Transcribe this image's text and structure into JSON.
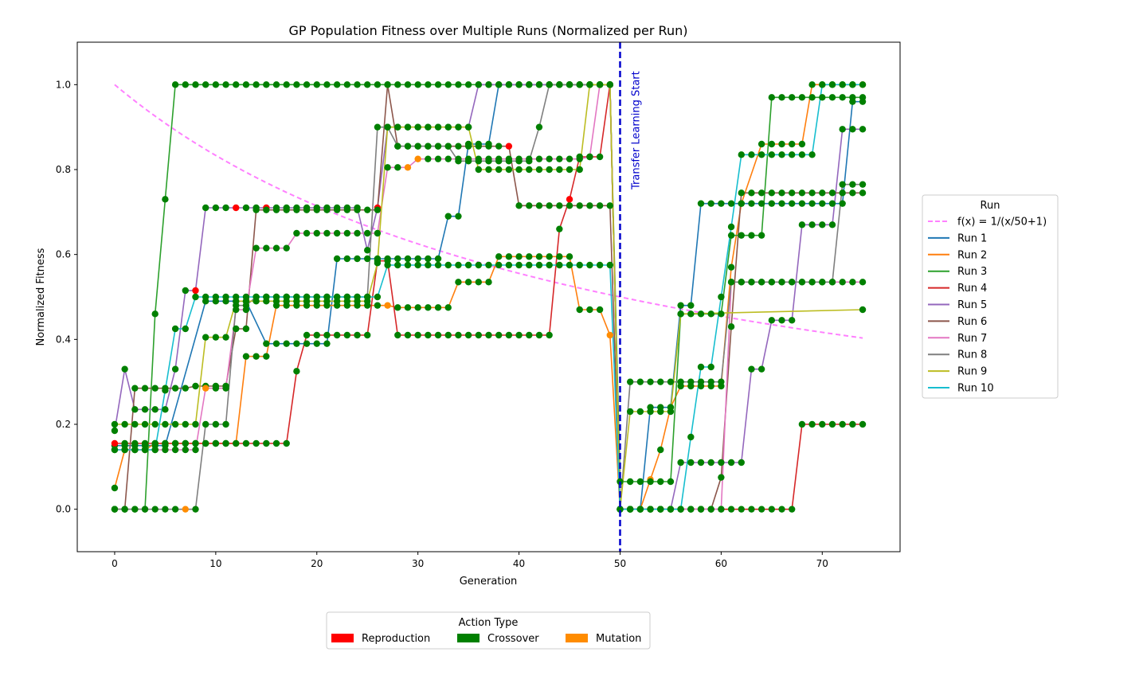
{
  "chart_data": {
    "type": "line",
    "title": "GP Population Fitness over Multiple Runs (Normalized per Run)",
    "xlabel": "Generation",
    "ylabel": "Normalized Fitness",
    "xlim": [
      -3.7,
      77.7
    ],
    "ylim": [
      -0.1,
      1.1
    ],
    "xticks": [
      0,
      10,
      20,
      30,
      40,
      50,
      60,
      70
    ],
    "yticks": [
      0.0,
      0.2,
      0.4,
      0.6,
      0.8,
      1.0
    ],
    "grid": false,
    "vline": {
      "x": 50,
      "label": "Transfer Learning Start",
      "color": "#0000cc"
    },
    "curve": {
      "label": "f(x) = 1/(x/50+1)",
      "color": "#ff80ff",
      "x_start": 0,
      "x_end": 74
    },
    "legend": {
      "title": "Run",
      "placement": "right"
    },
    "action_legend": {
      "title": "Action Type",
      "placement": "bottom",
      "items": [
        {
          "label": "Reproduction",
          "color": "#ff0000"
        },
        {
          "label": "Crossover",
          "color": "#008000"
        },
        {
          "label": "Mutation",
          "color": "#ff8c00"
        }
      ]
    },
    "series": [
      {
        "name": "Run 1",
        "color": "#1f77b4",
        "points": [
          [
            0,
            0.15,
            "C"
          ],
          [
            5,
            0.15,
            "C"
          ],
          [
            9,
            0.49,
            "C"
          ],
          [
            13,
            0.49,
            "C"
          ],
          [
            15,
            0.39,
            "C"
          ],
          [
            21,
            0.39,
            "C"
          ],
          [
            22,
            0.59,
            "C"
          ],
          [
            32,
            0.59,
            "C"
          ],
          [
            33,
            0.69,
            "C"
          ],
          [
            34,
            0.69,
            "C"
          ],
          [
            35,
            0.86,
            "C"
          ],
          [
            37,
            0.86,
            "C"
          ],
          [
            38,
            1.0,
            "C"
          ],
          [
            49,
            1.0,
            "R"
          ],
          [
            50,
            0.0,
            "C"
          ],
          [
            52,
            0.0,
            "C"
          ],
          [
            53,
            0.24,
            "C"
          ],
          [
            55,
            0.24,
            "C"
          ],
          [
            56,
            0.48,
            "C"
          ],
          [
            57,
            0.48,
            "C"
          ],
          [
            58,
            0.72,
            "C"
          ],
          [
            72,
            0.72,
            "C"
          ],
          [
            73,
            0.96,
            "C"
          ],
          [
            74,
            0.96,
            "C"
          ]
        ]
      },
      {
        "name": "Run 2",
        "color": "#ff7f0e",
        "points": [
          [
            0,
            0.05,
            "C"
          ],
          [
            1,
            0.14,
            "M"
          ],
          [
            3,
            0.14,
            "M"
          ],
          [
            4,
            0.155,
            "C"
          ],
          [
            12,
            0.155,
            "M"
          ],
          [
            13,
            0.36,
            "C"
          ],
          [
            15,
            0.36,
            "C"
          ],
          [
            16,
            0.48,
            "C"
          ],
          [
            27,
            0.48,
            "M"
          ],
          [
            28,
            0.475,
            "C"
          ],
          [
            33,
            0.475,
            "C"
          ],
          [
            34,
            0.535,
            "C"
          ],
          [
            37,
            0.535,
            "C"
          ],
          [
            38,
            0.595,
            "C"
          ],
          [
            45,
            0.595,
            "C"
          ],
          [
            46,
            0.47,
            "C"
          ],
          [
            48,
            0.47,
            "C"
          ],
          [
            49,
            0.41,
            "M"
          ],
          [
            50,
            0.0,
            "C"
          ],
          [
            52,
            0.0,
            "C"
          ],
          [
            53,
            0.07,
            "M"
          ],
          [
            54,
            0.14,
            "C"
          ],
          [
            55,
            0.24,
            "C"
          ],
          [
            56,
            0.29,
            "C"
          ],
          [
            60,
            0.29,
            "C"
          ],
          [
            61,
            0.57,
            "C"
          ],
          [
            62,
            0.72,
            "C"
          ],
          [
            64,
            0.86,
            "C"
          ],
          [
            68,
            0.86,
            "C"
          ],
          [
            69,
            1.0,
            "C"
          ],
          [
            74,
            1.0,
            "M"
          ]
        ]
      },
      {
        "name": "Run 3",
        "color": "#2ca02c",
        "points": [
          [
            0,
            0.0,
            "C"
          ],
          [
            3,
            0.0,
            "C"
          ],
          [
            4,
            0.46,
            "C"
          ],
          [
            5,
            0.73,
            "C"
          ],
          [
            6,
            1.0,
            "C"
          ],
          [
            49,
            1.0,
            "C"
          ],
          [
            50,
            0.065,
            "C"
          ],
          [
            55,
            0.065,
            "C"
          ],
          [
            56,
            0.46,
            "C"
          ],
          [
            60,
            0.46,
            "C"
          ],
          [
            61,
            0.645,
            "C"
          ],
          [
            64,
            0.645,
            "C"
          ],
          [
            65,
            0.97,
            "C"
          ],
          [
            74,
            0.97,
            "C"
          ]
        ]
      },
      {
        "name": "Run 4",
        "color": "#d62728",
        "points": [
          [
            0,
            0.155,
            "R"
          ],
          [
            17,
            0.155,
            "C"
          ],
          [
            18,
            0.325,
            "C"
          ],
          [
            19,
            0.41,
            "C"
          ],
          [
            25,
            0.41,
            "C"
          ],
          [
            26,
            0.585,
            "C"
          ],
          [
            27,
            0.585,
            "C"
          ],
          [
            28,
            0.41,
            "C"
          ],
          [
            43,
            0.41,
            "C"
          ],
          [
            44,
            0.66,
            "C"
          ],
          [
            45,
            0.73,
            "R"
          ],
          [
            46,
            0.83,
            "C"
          ],
          [
            48,
            0.83,
            "C"
          ],
          [
            49,
            1.0,
            "R"
          ],
          [
            50,
            0.0,
            "C"
          ],
          [
            67,
            0.0,
            "C"
          ],
          [
            68,
            0.2,
            "C"
          ],
          [
            74,
            0.2,
            "C"
          ]
        ]
      },
      {
        "name": "Run 5",
        "color": "#9467bd",
        "points": [
          [
            0,
            0.185,
            "C"
          ],
          [
            1,
            0.33,
            "C"
          ],
          [
            2,
            0.235,
            "C"
          ],
          [
            5,
            0.235,
            "C"
          ],
          [
            6,
            0.33,
            "C"
          ],
          [
            7,
            0.515,
            "C"
          ],
          [
            8,
            0.515,
            "R"
          ],
          [
            9,
            0.71,
            "C"
          ],
          [
            12,
            0.71,
            "R"
          ],
          [
            13,
            0.71,
            "C"
          ],
          [
            14,
            0.71,
            "C"
          ],
          [
            15,
            0.71,
            "R"
          ],
          [
            24,
            0.71,
            "C"
          ],
          [
            25,
            0.61,
            "C"
          ],
          [
            26,
            0.71,
            "R"
          ],
          [
            27,
            0.9,
            "C"
          ],
          [
            35,
            0.9,
            "C"
          ],
          [
            36,
            1.0,
            "C"
          ],
          [
            49,
            1.0,
            "C"
          ],
          [
            50,
            0.0,
            "C"
          ],
          [
            55,
            0.0,
            "C"
          ],
          [
            56,
            0.11,
            "C"
          ],
          [
            62,
            0.11,
            "C"
          ],
          [
            63,
            0.33,
            "C"
          ],
          [
            64,
            0.33,
            "C"
          ],
          [
            65,
            0.445,
            "C"
          ],
          [
            67,
            0.445,
            "C"
          ],
          [
            68,
            0.67,
            "C"
          ],
          [
            71,
            0.67,
            "C"
          ],
          [
            72,
            0.895,
            "C"
          ],
          [
            74,
            0.895,
            "C"
          ]
        ]
      },
      {
        "name": "Run 6",
        "color": "#8c564b",
        "points": [
          [
            0,
            0.0,
            "C"
          ],
          [
            1,
            0.0,
            "C"
          ],
          [
            2,
            0.285,
            "C"
          ],
          [
            7,
            0.285,
            "C"
          ],
          [
            8,
            0.29,
            "C"
          ],
          [
            11,
            0.29,
            "C"
          ],
          [
            12,
            0.425,
            "C"
          ],
          [
            13,
            0.425,
            "C"
          ],
          [
            14,
            0.705,
            "C"
          ],
          [
            26,
            0.705,
            "C"
          ],
          [
            27,
            1.0,
            "C"
          ],
          [
            28,
            0.855,
            "C"
          ],
          [
            39,
            0.855,
            "R"
          ],
          [
            40,
            0.715,
            "C"
          ],
          [
            49,
            0.715,
            "C"
          ],
          [
            50,
            0.0,
            "C"
          ],
          [
            59,
            0.0,
            "C"
          ],
          [
            60,
            0.075,
            "C"
          ],
          [
            61,
            0.43,
            "C"
          ],
          [
            62,
            0.745,
            "C"
          ],
          [
            74,
            0.745,
            "C"
          ]
        ]
      },
      {
        "name": "Run 7",
        "color": "#e377c2",
        "points": [
          [
            0,
            0.14,
            "C"
          ],
          [
            8,
            0.14,
            "C"
          ],
          [
            9,
            0.285,
            "M"
          ],
          [
            11,
            0.285,
            "C"
          ],
          [
            12,
            0.47,
            "C"
          ],
          [
            13,
            0.47,
            "C"
          ],
          [
            14,
            0.615,
            "C"
          ],
          [
            17,
            0.615,
            "C"
          ],
          [
            18,
            0.65,
            "C"
          ],
          [
            26,
            0.65,
            "C"
          ],
          [
            27,
            0.805,
            "C"
          ],
          [
            29,
            0.805,
            "M"
          ],
          [
            30,
            0.825,
            "M"
          ],
          [
            45,
            0.825,
            "C"
          ],
          [
            46,
            0.825,
            "C"
          ],
          [
            47,
            0.83,
            "C"
          ],
          [
            48,
            1.0,
            "C"
          ],
          [
            49,
            1.0,
            "C"
          ],
          [
            50,
            0.0,
            "C"
          ],
          [
            60,
            0.0,
            "C"
          ],
          [
            61,
            0.535,
            "C"
          ],
          [
            74,
            0.535,
            "C"
          ]
        ]
      },
      {
        "name": "Run 8",
        "color": "#7f7f7f",
        "points": [
          [
            0,
            0.0,
            "C"
          ],
          [
            7,
            0.0,
            "M"
          ],
          [
            8,
            0.0,
            "C"
          ],
          [
            9,
            0.2,
            "C"
          ],
          [
            10,
            0.2,
            "C"
          ],
          [
            11,
            0.2,
            "C"
          ],
          [
            12,
            0.48,
            "C"
          ],
          [
            13,
            0.48,
            "C"
          ],
          [
            14,
            0.5,
            "C"
          ],
          [
            25,
            0.5,
            "C"
          ],
          [
            26,
            0.9,
            "C"
          ],
          [
            27,
            0.9,
            "C"
          ],
          [
            28,
            0.855,
            "C"
          ],
          [
            33,
            0.855,
            "C"
          ],
          [
            34,
            0.82,
            "C"
          ],
          [
            41,
            0.82,
            "C"
          ],
          [
            42,
            0.9,
            "C"
          ],
          [
            43,
            1.0,
            "C"
          ],
          [
            49,
            1.0,
            "C"
          ],
          [
            50,
            0.0,
            "C"
          ],
          [
            51,
            0.3,
            "C"
          ],
          [
            59,
            0.3,
            "C"
          ],
          [
            60,
            0.3,
            "C"
          ],
          [
            61,
            0.535,
            "C"
          ],
          [
            71,
            0.535,
            "C"
          ],
          [
            72,
            0.765,
            "C"
          ],
          [
            74,
            0.765,
            "C"
          ]
        ]
      },
      {
        "name": "Run 9",
        "color": "#bcbd22",
        "points": [
          [
            0,
            0.2,
            "C"
          ],
          [
            8,
            0.2,
            "C"
          ],
          [
            9,
            0.405,
            "C"
          ],
          [
            11,
            0.405,
            "C"
          ],
          [
            12,
            0.49,
            "C"
          ],
          [
            25,
            0.49,
            "C"
          ],
          [
            26,
            0.58,
            "C"
          ],
          [
            27,
            0.9,
            "C"
          ],
          [
            35,
            0.9,
            "C"
          ],
          [
            36,
            0.8,
            "C"
          ],
          [
            46,
            0.8,
            "C"
          ],
          [
            47,
            1.0,
            "C"
          ],
          [
            49,
            1.0,
            "C"
          ],
          [
            50,
            0.0,
            "C"
          ],
          [
            51,
            0.23,
            "C"
          ],
          [
            55,
            0.23,
            "C"
          ],
          [
            56,
            0.46,
            "C"
          ],
          [
            74,
            0.47,
            "C"
          ]
        ]
      },
      {
        "name": "Run 10",
        "color": "#17becf",
        "points": [
          [
            0,
            0.14,
            "C"
          ],
          [
            4,
            0.14,
            "C"
          ],
          [
            5,
            0.28,
            "C"
          ],
          [
            6,
            0.425,
            "C"
          ],
          [
            7,
            0.425,
            "C"
          ],
          [
            8,
            0.5,
            "C"
          ],
          [
            26,
            0.5,
            "C"
          ],
          [
            27,
            0.575,
            "C"
          ],
          [
            49,
            0.575,
            "C"
          ],
          [
            50,
            0.0,
            "C"
          ],
          [
            56,
            0.0,
            "C"
          ],
          [
            57,
            0.17,
            "C"
          ],
          [
            58,
            0.335,
            "C"
          ],
          [
            59,
            0.335,
            "C"
          ],
          [
            60,
            0.5,
            "C"
          ],
          [
            61,
            0.665,
            "C"
          ],
          [
            62,
            0.835,
            "C"
          ],
          [
            69,
            0.835,
            "C"
          ],
          [
            70,
            1.0,
            "C"
          ],
          [
            74,
            1.0,
            "C"
          ]
        ]
      }
    ]
  }
}
